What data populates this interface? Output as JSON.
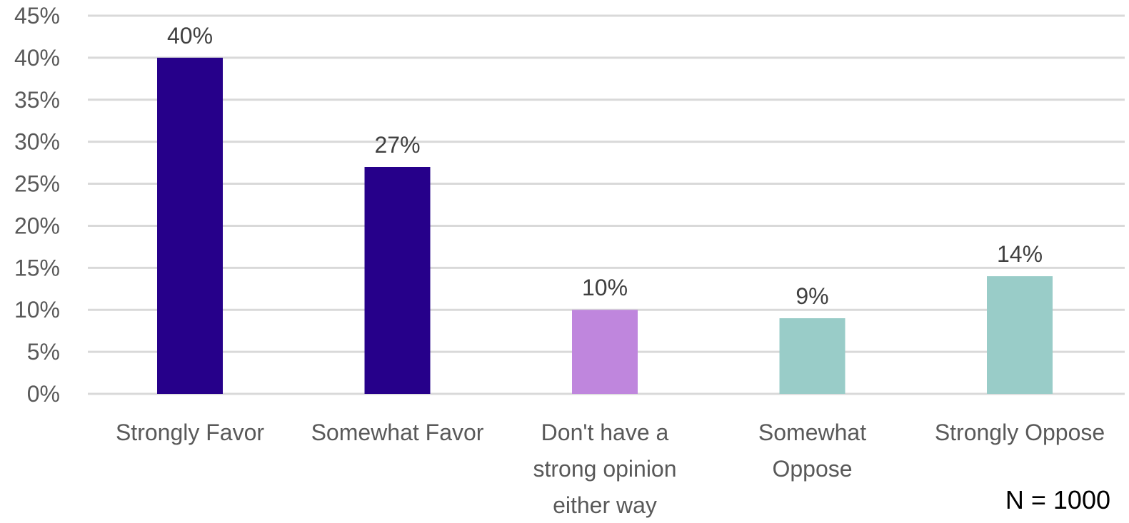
{
  "chart_data": {
    "type": "bar",
    "categories": [
      "Strongly Favor",
      "Somewhat Favor",
      "Don't have a strong opinion either way",
      "Somewhat Oppose",
      "Strongly Oppose"
    ],
    "category_lines": [
      [
        "Strongly Favor"
      ],
      [
        "Somewhat Favor"
      ],
      [
        "Don't have a",
        "strong opinion",
        "either way"
      ],
      [
        "Somewhat",
        "Oppose"
      ],
      [
        "Strongly Oppose"
      ]
    ],
    "values": [
      40,
      27,
      10,
      9,
      14
    ],
    "data_labels": [
      "40%",
      "27%",
      "10%",
      "9%",
      "14%"
    ],
    "bar_colors": [
      "#26008A",
      "#26008A",
      "#BF86DD",
      "#99CCC8",
      "#99CCC8"
    ],
    "ylim": [
      0,
      45
    ],
    "y_ticks": [
      0,
      5,
      10,
      15,
      20,
      25,
      30,
      35,
      40,
      45
    ],
    "y_tick_labels": [
      "0%",
      "5%",
      "10%",
      "15%",
      "20%",
      "25%",
      "30%",
      "35%",
      "40%",
      "45%"
    ],
    "grid": true,
    "gridline_color": "#D9D9D9",
    "title": "",
    "xlabel": "",
    "ylabel": ""
  },
  "annotation": "N = 1000"
}
